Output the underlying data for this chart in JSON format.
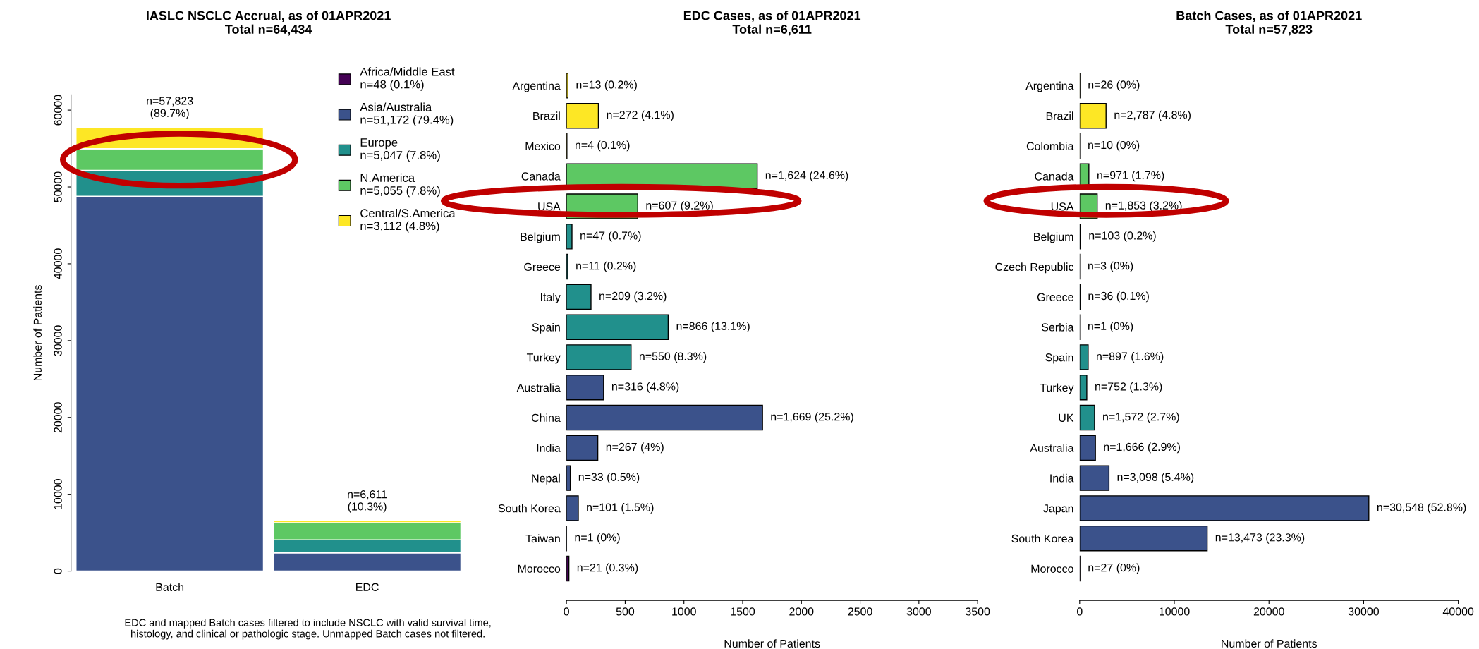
{
  "chart_data": [
    {
      "type": "bar",
      "title": "IASLC NSCLC Accrual, as of 01APR2021",
      "subtitle": "Total n=64,434",
      "ylabel": "Number of Patients",
      "categories": [
        "Batch",
        "EDC"
      ],
      "stacked": true,
      "series": [
        {
          "name": "Africa/Middle East\nn=48 (0.1%)",
          "color": "#440154",
          "values": [
            null,
            null
          ]
        },
        {
          "name": "Asia/Australia\nn=51,172 (79.4%)",
          "color": "#3b528b",
          "values": [
            48785,
            2387
          ]
        },
        {
          "name": "Europe\nn=5,047 (7.8%)",
          "color": "#21908c",
          "values": [
            3364,
            1683
          ]
        },
        {
          "name": "N.America\nn=5,055 (7.8%)",
          "color": "#5dc863",
          "values": [
            2824,
            2231
          ]
        },
        {
          "name": "Central/S.America\nn=3,112 (4.8%)",
          "color": "#fde725",
          "values": [
            2823,
            289
          ]
        }
      ],
      "totals": [
        "n=57,823\n(89.7%)",
        "n=6,611\n(10.3%)"
      ],
      "ylim": [
        0,
        62000
      ],
      "yticks": [
        0,
        10000,
        20000,
        30000,
        40000,
        50000,
        60000
      ],
      "grid": false,
      "legend": "top right",
      "annotations": [
        "EDC and mapped Batch cases filtered to include NSCLC with valid survival time,\nhistology, and clinical or pathologic stage. Unmapped Batch cases not filtered."
      ]
    },
    {
      "type": "bar",
      "orientation": "horizontal",
      "title": "EDC Cases, as of 01APR2021",
      "subtitle": "Total n=6,611",
      "xlabel": "Number of Patients",
      "categories": [
        "Argentina",
        "Brazil",
        "Mexico",
        "Canada",
        "USA",
        "Belgium",
        "Greece",
        "Italy",
        "Spain",
        "Turkey",
        "Australia",
        "China",
        "India",
        "Nepal",
        "South Korea",
        "Taiwan",
        "Morocco"
      ],
      "values": [
        13,
        272,
        4,
        1624,
        607,
        47,
        11,
        209,
        866,
        550,
        316,
        1669,
        267,
        33,
        101,
        1,
        21
      ],
      "colors": [
        "#fde725",
        "#fde725",
        "#fde725",
        "#5dc863",
        "#5dc863",
        "#21908c",
        "#21908c",
        "#21908c",
        "#21908c",
        "#21908c",
        "#3b528b",
        "#3b528b",
        "#3b528b",
        "#3b528b",
        "#3b528b",
        "#3b528b",
        "#440154"
      ],
      "value_labels": [
        "n=13 (0.2%)",
        "n=272 (4.1%)",
        "n=4 (0.1%)",
        "n=1,624 (24.6%)",
        "n=607 (9.2%)",
        "n=47 (0.7%)",
        "n=11 (0.2%)",
        "n=209 (3.2%)",
        "n=866 (13.1%)",
        "n=550 (8.3%)",
        "n=316 (4.8%)",
        "n=1,669 (25.2%)",
        "n=267 (4%)",
        "n=33 (0.5%)",
        "n=101 (1.5%)",
        "n=1 (0%)",
        "n=21 (0.3%)"
      ],
      "xlim": [
        0,
        3500
      ],
      "xticks": [
        0,
        500,
        1000,
        1500,
        2000,
        2500,
        3000,
        3500
      ],
      "grid": false
    },
    {
      "type": "bar",
      "orientation": "horizontal",
      "title": "Batch Cases, as of 01APR2021",
      "subtitle": "Total n=57,823",
      "xlabel": "Number of Patients",
      "categories": [
        "Argentina",
        "Brazil",
        "Colombia",
        "Canada",
        "USA",
        "Belgium",
        "Czech Republic",
        "Greece",
        "Serbia",
        "Spain",
        "Turkey",
        "UK",
        "Australia",
        "India",
        "Japan",
        "South Korea",
        "Morocco"
      ],
      "values": [
        26,
        2787,
        10,
        971,
        1853,
        103,
        3,
        36,
        1,
        897,
        752,
        1572,
        1666,
        3098,
        30548,
        13473,
        27
      ],
      "colors": [
        "#fde725",
        "#fde725",
        "#fde725",
        "#5dc863",
        "#5dc863",
        "#21908c",
        "#21908c",
        "#21908c",
        "#21908c",
        "#21908c",
        "#21908c",
        "#21908c",
        "#3b528b",
        "#3b528b",
        "#3b528b",
        "#3b528b",
        "#440154"
      ],
      "value_labels": [
        "n=26 (0%)",
        "n=2,787 (4.8%)",
        "n=10 (0%)",
        "n=971 (1.7%)",
        "n=1,853 (3.2%)",
        "n=103 (0.2%)",
        "n=3 (0%)",
        "n=36 (0.1%)",
        "n=1 (0%)",
        "n=897 (1.6%)",
        "n=752 (1.3%)",
        "n=1,572 (2.7%)",
        "n=1,666 (2.9%)",
        "n=3,098 (5.4%)",
        "n=30,548 (52.8%)",
        "n=13,473 (23.3%)",
        "n=27 (0%)"
      ],
      "xlim": [
        0,
        40000
      ],
      "xticks": [
        0,
        10000,
        20000,
        30000,
        40000
      ],
      "grid": false
    }
  ]
}
